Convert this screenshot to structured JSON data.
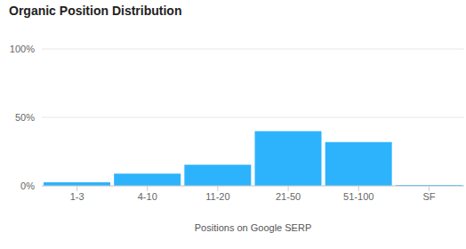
{
  "chart_data": {
    "type": "bar",
    "title": "Organic Position Distribution",
    "x_label": "Positions on Google SERP",
    "categories": [
      "1-3",
      "4-10",
      "11-20",
      "21-50",
      "51-100",
      "SF"
    ],
    "values": [
      2.6,
      9,
      15.5,
      40,
      32,
      0.6
    ],
    "color": "#2db3fc",
    "ylim": [
      0,
      100
    ],
    "yticks": [
      {
        "value": 0,
        "label": "0%"
      },
      {
        "value": 50,
        "label": "50%"
      },
      {
        "value": 100,
        "label": "100%"
      }
    ],
    "grid": true
  }
}
